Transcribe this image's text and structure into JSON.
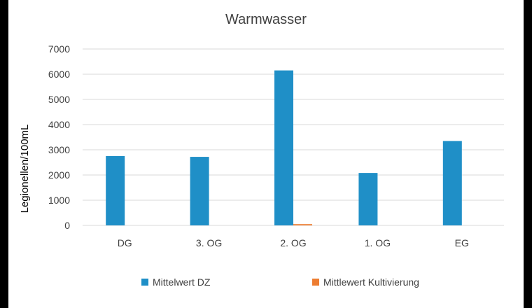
{
  "chart_data": {
    "type": "bar",
    "title": "Warmwasser",
    "xlabel": "",
    "ylabel": "Legionellen/100mL",
    "categories": [
      "DG",
      "3. OG",
      "2. OG",
      "1. OG",
      "EG"
    ],
    "series": [
      {
        "name": "Mittelwert DZ",
        "color": "#1f8fc7",
        "values": [
          2750,
          2720,
          6150,
          2080,
          3350
        ]
      },
      {
        "name": "Mittlewert Kultivierung",
        "color": "#ed7d31",
        "values": [
          0,
          0,
          50,
          0,
          0
        ]
      }
    ],
    "ylim": [
      0,
      7000
    ],
    "yticks": [
      0,
      1000,
      2000,
      3000,
      4000,
      5000,
      6000,
      7000
    ],
    "grid": true,
    "legend_position": "bottom"
  }
}
